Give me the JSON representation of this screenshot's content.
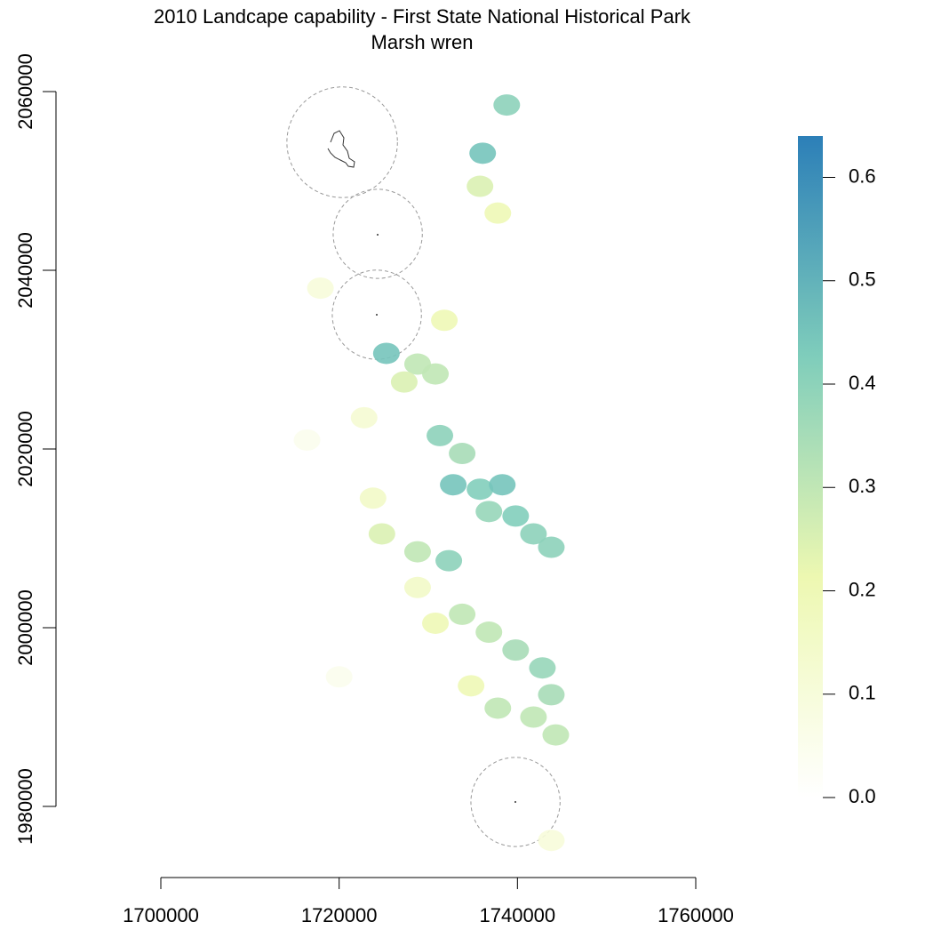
{
  "chart_data": {
    "type": "raster",
    "title": "2010 Landcape capability - First State National Historical Park",
    "subtitle": "Marsh wren",
    "xlim": [
      1700000,
      1760000
    ],
    "xticks": [
      1700000,
      1720000,
      1740000,
      1760000
    ],
    "ylim": [
      1980000,
      2060000
    ],
    "yticks": [
      1980000,
      2000000,
      2020000,
      2040000,
      2060000
    ],
    "colorscale": {
      "colors": [
        "#ffffff",
        "#edf8b1",
        "#7fcdbb",
        "#2c7fb8"
      ],
      "lim": [
        0,
        0.64
      ],
      "ticks": [
        {
          "value": 0,
          "label": "0.0"
        },
        0.1,
        0.2,
        0.3,
        0.4,
        0.5,
        0.6
      ]
    },
    "buffers": {
      "x": [
        1720340,
        1724330,
        1724230,
        1739780
      ],
      "y": [
        2054330,
        2044080,
        2035030,
        1980500
      ],
      "radius": [
        6200,
        5000,
        5000,
        5000
      ]
    },
    "cells": {
      "x": [
        1738800,
        1736100,
        1735800,
        1737800,
        1725300,
        1728800,
        1731800,
        1730800,
        1731300,
        1732800,
        1735800,
        1738300,
        1739800,
        1741800,
        1743800,
        1733800,
        1736800,
        1724800,
        1728800,
        1732300,
        1723800,
        1722800,
        1733800,
        1736800,
        1739800,
        1742800,
        1743800,
        1741800,
        1737800,
        1730800,
        1728800,
        1734800,
        1744300,
        1717900,
        1716400,
        1743800,
        1720000,
        1727300
      ],
      "y": [
        2058500,
        2053100,
        2049400,
        2046400,
        2030700,
        2029500,
        2034400,
        2028400,
        2021500,
        2016000,
        2015500,
        2016000,
        2012500,
        2010500,
        2009000,
        2019500,
        2013000,
        2010500,
        2008500,
        2007500,
        2014500,
        2023500,
        2001500,
        1999500,
        1997500,
        1995500,
        1992500,
        1990000,
        1991000,
        2000500,
        2004500,
        1993500,
        1988000,
        2038000,
        2021000,
        1976200,
        1994500,
        2027500
      ],
      "values": [
        0.4,
        0.45,
        0.25,
        0.2,
        0.45,
        0.3,
        0.2,
        0.3,
        0.4,
        0.45,
        0.42,
        0.45,
        0.42,
        0.4,
        0.4,
        0.35,
        0.38,
        0.25,
        0.3,
        0.4,
        0.15,
        0.12,
        0.3,
        0.3,
        0.35,
        0.38,
        0.35,
        0.3,
        0.3,
        0.2,
        0.15,
        0.2,
        0.3,
        0.1,
        0.05,
        0.1,
        0.05,
        0.25
      ]
    }
  }
}
